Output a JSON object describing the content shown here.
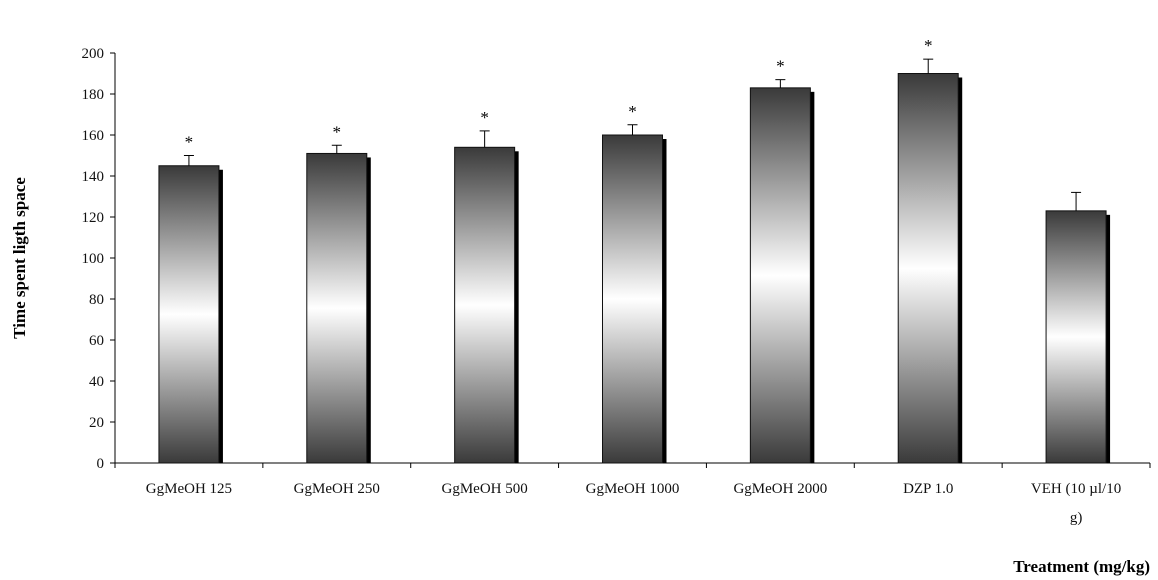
{
  "chart_data": {
    "type": "bar",
    "title": "",
    "xlabel": "Treatment (mg/kg)",
    "ylabel": "Time spent ligth space",
    "ylim": [
      0,
      200
    ],
    "yticks": [
      0,
      20,
      40,
      60,
      80,
      100,
      120,
      140,
      160,
      180,
      200
    ],
    "categories": [
      [
        "GgMeOH  125"
      ],
      [
        "GgMeOH  250"
      ],
      [
        "GgMeOH 500"
      ],
      [
        "GgMeOH  1000"
      ],
      [
        "GgMeOH  2000"
      ],
      [
        "DZP 1.0"
      ],
      [
        "VEH (10 µl/10",
        "g)"
      ]
    ],
    "values": [
      145,
      151,
      154,
      160,
      183,
      190,
      123
    ],
    "errors": [
      5,
      4,
      8,
      5,
      4,
      7,
      9
    ],
    "significance": [
      "*",
      "*",
      "*",
      "*",
      "*",
      "*",
      ""
    ],
    "grid": false,
    "legend": "none",
    "bar_style": "gradient-grey-with-shadow"
  }
}
